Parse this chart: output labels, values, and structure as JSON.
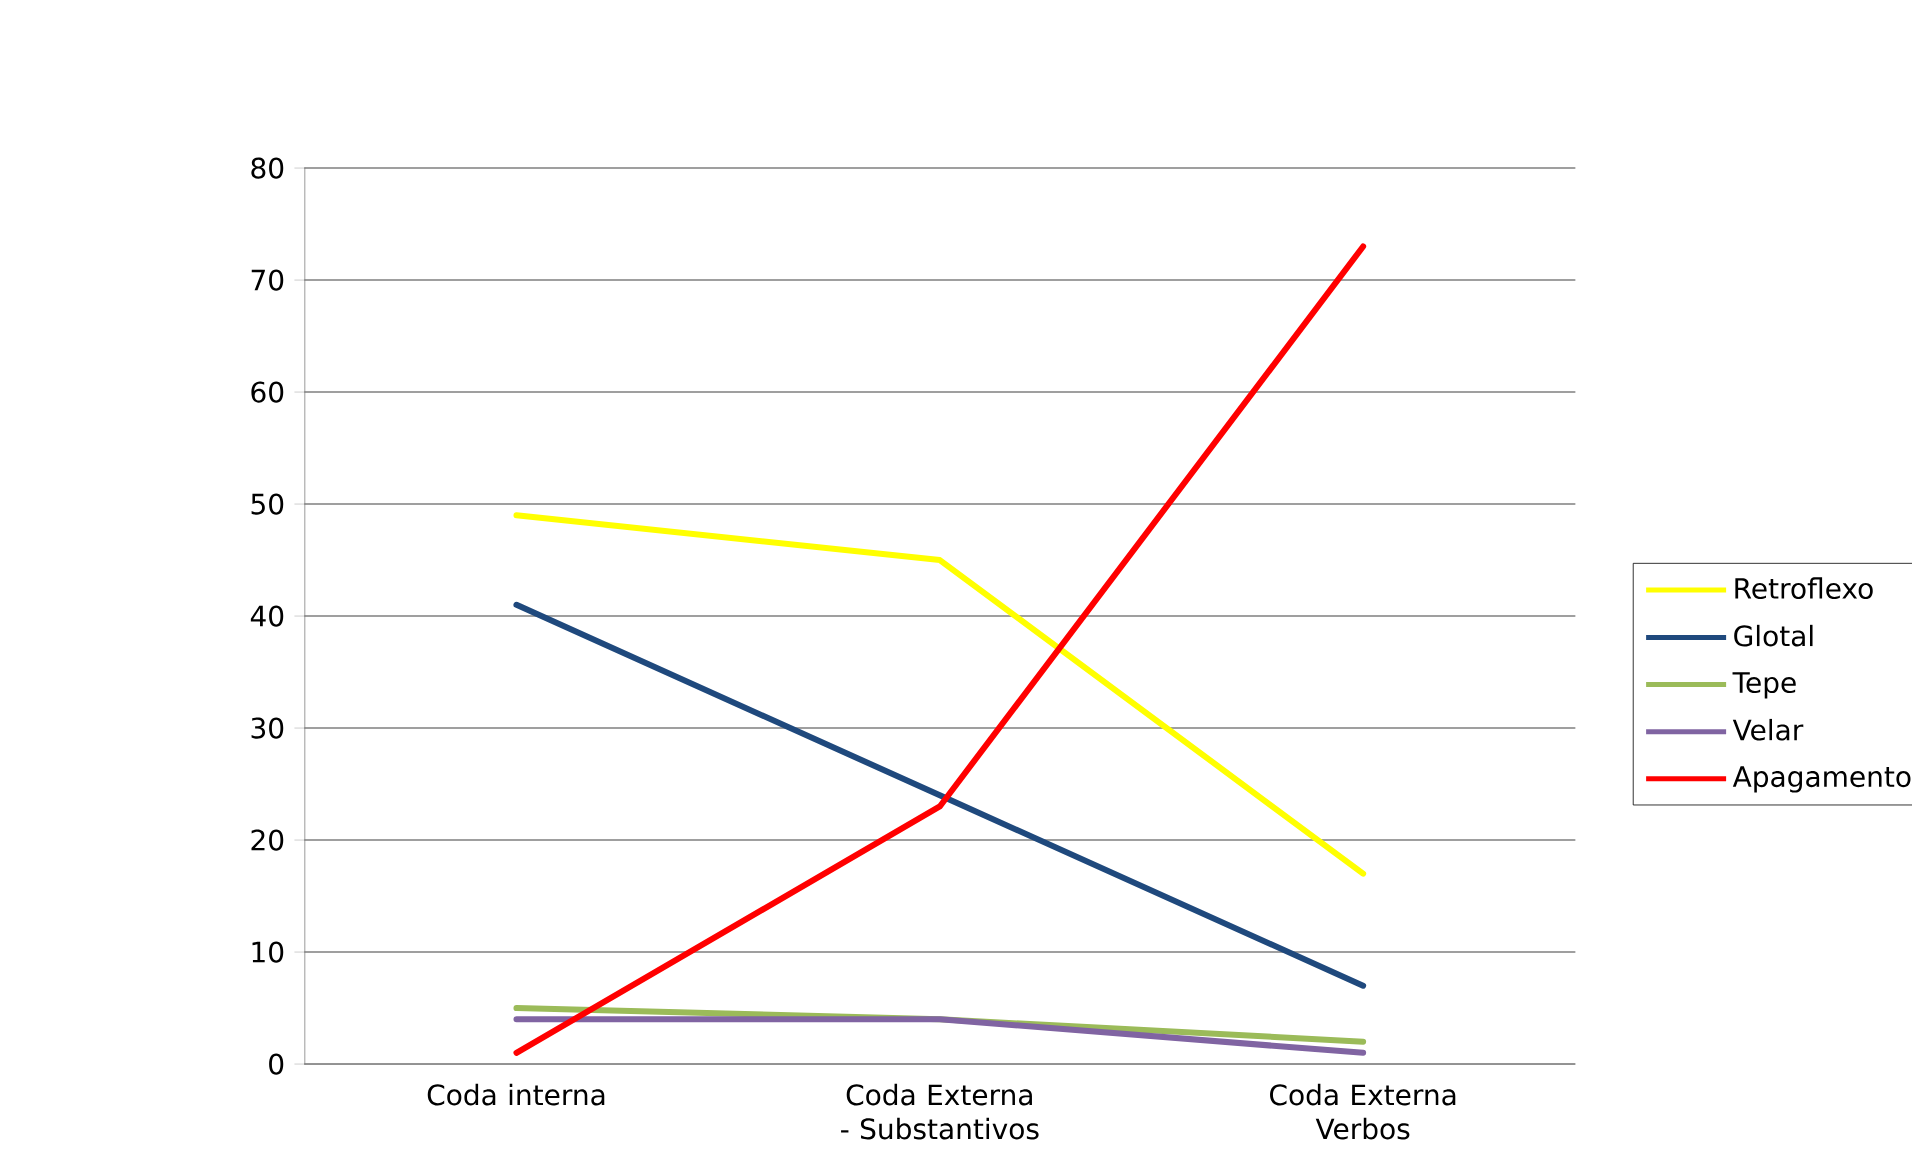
{
  "chart_data": {
    "type": "line",
    "categories": [
      "Coda interna",
      "Coda Externa - Substantivos",
      "Coda Externa Verbos"
    ],
    "series": [
      {
        "name": "Retroflexo",
        "color": "#ffff00",
        "values": [
          49,
          45,
          17
        ]
      },
      {
        "name": "Glotal",
        "color": "#1f497d",
        "values": [
          41,
          24,
          7
        ]
      },
      {
        "name": "Tepe",
        "color": "#9bbb59",
        "values": [
          5,
          4,
          2
        ]
      },
      {
        "name": "Velar",
        "color": "#8064a2",
        "values": [
          4,
          4,
          1
        ]
      },
      {
        "name": "Apagamento",
        "color": "#ff0000",
        "values": [
          1,
          23,
          73
        ]
      }
    ],
    "ylim": [
      0,
      80
    ],
    "yticks": [
      0,
      10,
      20,
      30,
      40,
      50,
      60,
      70,
      80
    ],
    "grid": "y",
    "legend": "right",
    "marker": "none",
    "line_style": "solid"
  }
}
